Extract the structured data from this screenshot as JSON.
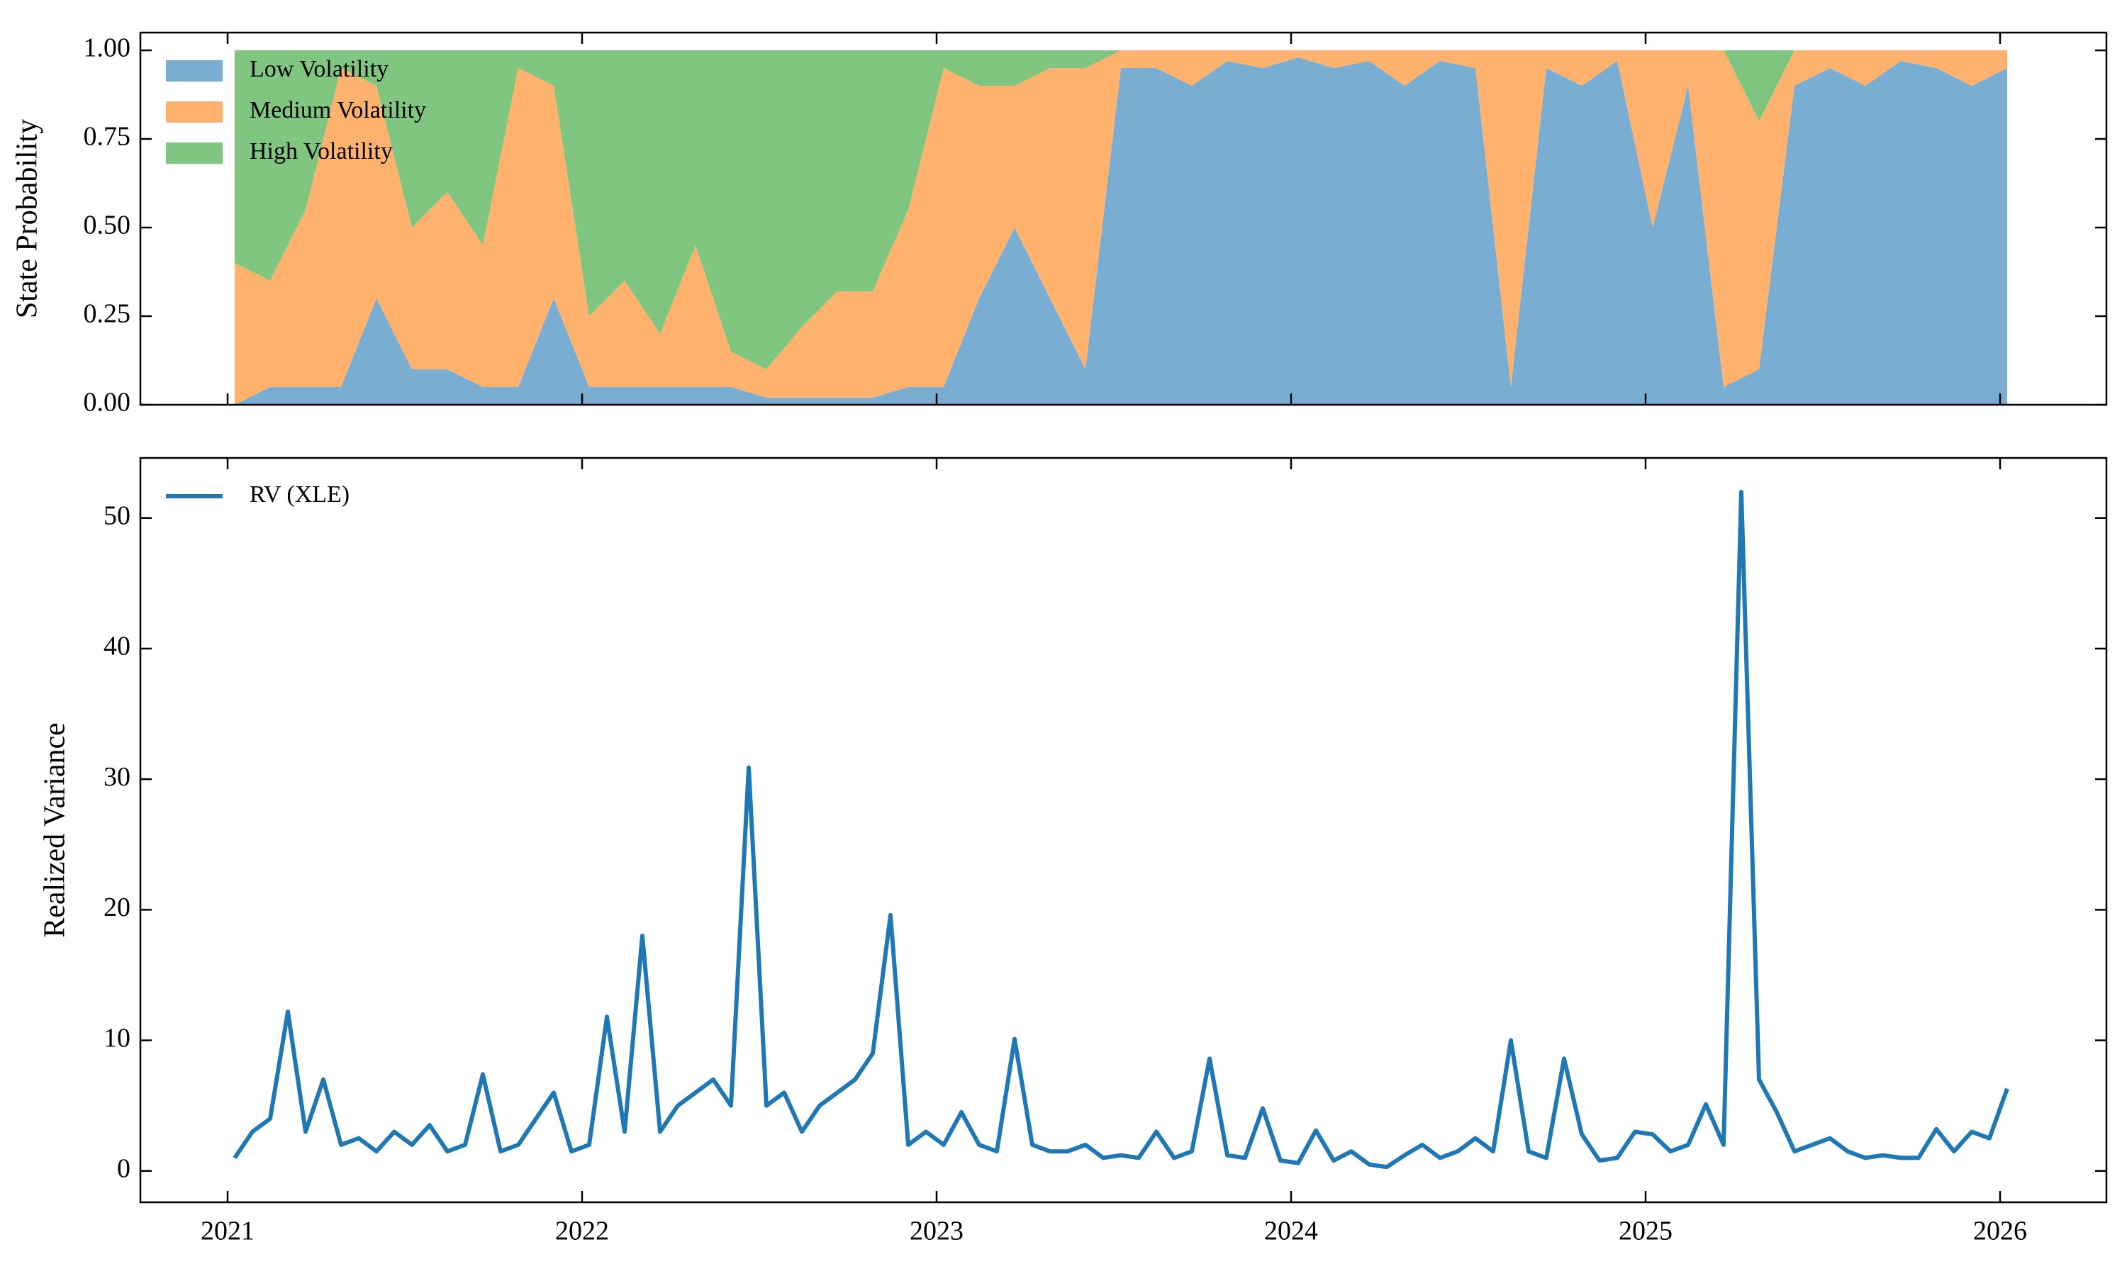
{
  "chart_data": [
    {
      "type": "stacked_area",
      "ylabel": "State Probability",
      "x": [
        2021.02,
        2021.12,
        2021.22,
        2021.32,
        2021.42,
        2021.52,
        2021.62,
        2021.72,
        2021.82,
        2021.92,
        2022.02,
        2022.12,
        2022.22,
        2022.32,
        2022.42,
        2022.52,
        2022.62,
        2022.72,
        2022.82,
        2022.92,
        2023.02,
        2023.12,
        2023.22,
        2023.32,
        2023.42,
        2023.52,
        2023.62,
        2023.72,
        2023.82,
        2023.92,
        2024.02,
        2024.12,
        2024.22,
        2024.32,
        2024.42,
        2024.52,
        2024.62,
        2024.72,
        2024.82,
        2024.92,
        2025.02,
        2025.12,
        2025.22,
        2025.32,
        2025.42,
        2025.52,
        2025.62,
        2025.72,
        2025.82,
        2025.92,
        2026.02
      ],
      "series": [
        {
          "name": "Low Volatility",
          "color": "#79add2",
          "values": [
            0,
            0.05,
            0.05,
            0.05,
            0.3,
            0.1,
            0.1,
            0.05,
            0.05,
            0.3,
            0.05,
            0.05,
            0.05,
            0.05,
            0.05,
            0.02,
            0.02,
            0.02,
            0.02,
            0.05,
            0.05,
            0.3,
            0.5,
            0.3,
            0.1,
            0.95,
            0.95,
            0.9,
            0.97,
            0.95,
            0.98,
            0.95,
            0.97,
            0.9,
            0.97,
            0.95,
            0.05,
            0.95,
            0.9,
            0.97,
            0.5,
            0.9,
            0.05,
            0.1,
            0.9,
            0.95,
            0.9,
            0.97,
            0.95,
            0.9,
            0.95
          ]
        },
        {
          "name": "Medium Volatility",
          "color": "#ffb26e",
          "values": [
            0.4,
            0.3,
            0.5,
            0.9,
            0.6,
            0.4,
            0.5,
            0.4,
            0.9,
            0.6,
            0.2,
            0.3,
            0.15,
            0.4,
            0.1,
            0.08,
            0.2,
            0.3,
            0.3,
            0.5,
            0.9,
            0.6,
            0.4,
            0.65,
            0.85,
            0.05,
            0.05,
            0.1,
            0.03,
            0.05,
            0.02,
            0.05,
            0.03,
            0.1,
            0.03,
            0.05,
            0.95,
            0.05,
            0.1,
            0.03,
            0.5,
            0.1,
            0.95,
            0.7,
            0.1,
            0.05,
            0.1,
            0.03,
            0.05,
            0.1,
            0.05
          ]
        },
        {
          "name": "High Volatility",
          "color": "#80c680",
          "values": [
            0.6,
            0.65,
            0.45,
            0.05,
            0.1,
            0.5,
            0.4,
            0.55,
            0.05,
            0.1,
            0.75,
            0.65,
            0.8,
            0.55,
            0.85,
            0.9,
            0.78,
            0.68,
            0.68,
            0.45,
            0.05,
            0.1,
            0.1,
            0.05,
            0.05,
            0,
            0,
            0,
            0,
            0,
            0,
            0,
            0,
            0,
            0,
            0,
            0,
            0,
            0,
            0,
            0,
            0,
            0,
            0.2,
            0,
            0,
            0,
            0,
            0,
            0,
            0
          ]
        }
      ],
      "xlim": [
        2020.754,
        2026.3
      ],
      "ylim": [
        0,
        1.05
      ],
      "yticks": [
        {
          "value": 0,
          "label": "0.00"
        },
        {
          "value": 0.25,
          "label": "0.25"
        },
        {
          "value": 0.5,
          "label": "0.50"
        },
        {
          "value": 0.75,
          "label": "0.75"
        },
        {
          "value": 1,
          "label": "1.00"
        }
      ],
      "legend": "upper left"
    },
    {
      "type": "line",
      "ylabel": "Realized Variance",
      "x": [
        2021.02,
        2021.07,
        2021.12,
        2021.17,
        2021.22,
        2021.27,
        2021.32,
        2021.37,
        2021.42,
        2021.47,
        2021.52,
        2021.57,
        2021.62,
        2021.67,
        2021.72,
        2021.77,
        2021.82,
        2021.87,
        2021.92,
        2021.97,
        2022.02,
        2022.07,
        2022.12,
        2022.17,
        2022.22,
        2022.27,
        2022.32,
        2022.37,
        2022.42,
        2022.47,
        2022.52,
        2022.57,
        2022.62,
        2022.67,
        2022.72,
        2022.77,
        2022.82,
        2022.87,
        2022.92,
        2022.97,
        2023.02,
        2023.07,
        2023.12,
        2023.17,
        2023.22,
        2023.27,
        2023.32,
        2023.37,
        2023.42,
        2023.47,
        2023.52,
        2023.57,
        2023.62,
        2023.67,
        2023.72,
        2023.77,
        2023.82,
        2023.87,
        2023.92,
        2023.97,
        2024.02,
        2024.07,
        2024.12,
        2024.17,
        2024.22,
        2024.27,
        2024.32,
        2024.37,
        2024.42,
        2024.47,
        2024.52,
        2024.57,
        2024.62,
        2024.67,
        2024.72,
        2024.77,
        2024.82,
        2024.87,
        2024.92,
        2024.97,
        2025.02,
        2025.07,
        2025.12,
        2025.17,
        2025.22,
        2025.27,
        2025.32,
        2025.37,
        2025.42,
        2025.47,
        2025.52,
        2025.57,
        2025.62,
        2025.67,
        2025.72,
        2025.77,
        2025.82,
        2025.87,
        2025.92,
        2025.97,
        2026.02
      ],
      "series": [
        {
          "name": "RV (XLE)",
          "color": "#1f77b4",
          "values": [
            1,
            3,
            4,
            12.2,
            3,
            7,
            2,
            2.5,
            1.5,
            3,
            2,
            3.5,
            1.5,
            2,
            7.4,
            1.5,
            2,
            4,
            6,
            1.5,
            2,
            11.8,
            3,
            18,
            3,
            5,
            6,
            7,
            5,
            30.9,
            5,
            6,
            3,
            5,
            6,
            7,
            9,
            19.6,
            2,
            3,
            2,
            4.5,
            2,
            1.5,
            10.1,
            2,
            1.5,
            1.5,
            2,
            1,
            1.2,
            1,
            3,
            1,
            1.5,
            8.6,
            1.2,
            1,
            4.8,
            0.8,
            0.6,
            3.1,
            0.8,
            1.5,
            0.5,
            0.3,
            1.2,
            2,
            1,
            1.5,
            2.5,
            1.5,
            10,
            1.5,
            1,
            8.6,
            2.8,
            0.8,
            1,
            3,
            2.8,
            1.5,
            2,
            5.1,
            2,
            52,
            7,
            4.5,
            1.5,
            2,
            2.5,
            1.5,
            1,
            1.2,
            1,
            1,
            3.2,
            1.5,
            3,
            2.5,
            6.3
          ]
        }
      ],
      "xlim": [
        2020.754,
        2026.3
      ],
      "ylim": [
        -2.4,
        54.6
      ],
      "xticks": [
        2021,
        2022,
        2023,
        2024,
        2025,
        2026
      ],
      "yticks": [
        0,
        10,
        20,
        30,
        40,
        50
      ],
      "legend": "upper left"
    }
  ]
}
